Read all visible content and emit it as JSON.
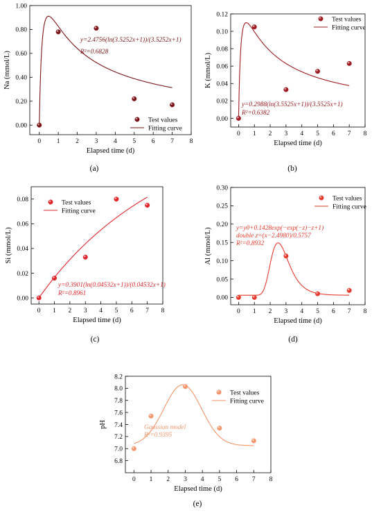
{
  "chart_data": [
    {
      "id": "a",
      "type": "scatter",
      "panel_label": "(a)",
      "title": "",
      "xlabel": "Elapsed time (d)",
      "ylabel": "Na (mmol/L)",
      "xlim": [
        -0.5,
        8
      ],
      "ylim": [
        -0.08,
        1.0
      ],
      "xticks": [
        0,
        1,
        2,
        3,
        4,
        5,
        6,
        7,
        8
      ],
      "yticks": [
        0.0,
        0.2,
        0.4,
        0.6,
        0.8,
        1.0
      ],
      "ytick_labels": [
        "0.00",
        "0.20",
        "0.40",
        "0.60",
        "0.80",
        "1.00"
      ],
      "color": "#7b1416",
      "series": [
        {
          "name": "Test values",
          "kind": "points",
          "x": [
            0,
            1,
            3,
            5,
            7
          ],
          "y": [
            0.0,
            0.78,
            0.81,
            0.22,
            0.17
          ]
        },
        {
          "name": "Fitting curve",
          "kind": "curve",
          "model": "log",
          "a": 2.4756,
          "b": 3.5252,
          "x_range": [
            0,
            7
          ]
        }
      ],
      "annotation_lines": [
        "y=2.4756(ln(3.5252x+1))/(3.5252x+1)",
        "R²=0.6828"
      ],
      "legend_position": "bottom-right"
    },
    {
      "id": "b",
      "type": "scatter",
      "panel_label": "(b)",
      "title": "",
      "xlabel": "Elapsed time (d)",
      "ylabel": "K (mmol/L)",
      "xlim": [
        -0.5,
        8
      ],
      "ylim": [
        -0.01,
        0.12
      ],
      "xticks": [
        0,
        1,
        2,
        3,
        4,
        5,
        6,
        7,
        8
      ],
      "yticks": [
        0.0,
        0.02,
        0.04,
        0.06,
        0.08,
        0.1,
        0.12
      ],
      "ytick_labels": [
        "0.00",
        "0.02",
        "0.04",
        "0.06",
        "0.08",
        "0.10",
        "0.12"
      ],
      "color": "#9e1b22",
      "series": [
        {
          "name": "Test values",
          "kind": "points",
          "x": [
            0,
            1,
            3,
            5,
            7
          ],
          "y": [
            0.0,
            0.105,
            0.033,
            0.054,
            0.063
          ]
        },
        {
          "name": "Fitting curve",
          "kind": "curve",
          "model": "log",
          "a": 0.2988,
          "b": 3.5525,
          "x_range": [
            0,
            7
          ]
        }
      ],
      "annotation_lines": [
        "y=0.2988(ln(3.5525x+1))/(3.5525x+1)",
        "R²=0.6382"
      ],
      "legend_position": "top-right"
    },
    {
      "id": "c",
      "type": "scatter",
      "panel_label": "(c)",
      "title": "",
      "xlabel": "Elapsed time (d)",
      "ylabel": "Si (mmol/L)",
      "xlim": [
        -0.5,
        8
      ],
      "ylim": [
        -0.005,
        0.09
      ],
      "xticks": [
        0,
        1,
        2,
        3,
        4,
        5,
        6,
        7,
        8
      ],
      "yticks": [
        0.0,
        0.02,
        0.04,
        0.06,
        0.08
      ],
      "ytick_labels": [
        "0.00",
        "0.02",
        "0.04",
        "0.06",
        "0.08"
      ],
      "color": "#e0262b",
      "series": [
        {
          "name": "Test values",
          "kind": "points",
          "x": [
            0,
            1,
            3,
            5,
            7
          ],
          "y": [
            0.0,
            0.016,
            0.033,
            0.08,
            0.075
          ]
        },
        {
          "name": "Fitting curve",
          "kind": "curve",
          "model": "log",
          "a": 0.3901,
          "b": 0.04532,
          "x_range": [
            0,
            7
          ]
        }
      ],
      "annotation_lines": [
        "y=0.3901(ln(0.04532x+1))/(0.04532x+1)",
        "R²=0.8961"
      ],
      "legend_position": "top-left"
    },
    {
      "id": "d",
      "type": "scatter",
      "panel_label": "(d)",
      "title": "",
      "xlabel": "Elapsed time (d)",
      "ylabel": "Al (mmol/L)",
      "xlim": [
        -0.5,
        8
      ],
      "ylim": [
        -0.02,
        0.3
      ],
      "xticks": [
        0,
        1,
        2,
        3,
        4,
        5,
        6,
        7,
        8
      ],
      "yticks": [
        0.0,
        0.05,
        0.1,
        0.15,
        0.2,
        0.25,
        0.3
      ],
      "ytick_labels": [
        "0.00",
        "0.05",
        "0.10",
        "0.15",
        "0.20",
        "0.25",
        "0.30"
      ],
      "color": "#e63a2c",
      "series": [
        {
          "name": "Test values",
          "kind": "points",
          "x": [
            0,
            1,
            3,
            5,
            7
          ],
          "y": [
            0.0,
            0.0,
            0.113,
            0.01,
            0.019
          ]
        },
        {
          "name": "Fitting curve",
          "kind": "curve",
          "model": "gumbel",
          "y0": 0.006,
          "A": 0.1428,
          "xc": 2.498,
          "w": 0.5757,
          "x_range": [
            0,
            7
          ]
        }
      ],
      "annotation_lines": [
        "y=y0+0.1428exp(−exp(−z)−z+1)",
        "double z=(x−2.4980)/0.5757",
        "R²=0.8932"
      ],
      "legend_position": "top-right"
    },
    {
      "id": "e",
      "type": "scatter",
      "panel_label": "(e)",
      "title": "",
      "xlabel": "Elapsed time (d)",
      "ylabel": "pH",
      "xlim": [
        -0.5,
        8
      ],
      "ylim": [
        6.6,
        8.2
      ],
      "xticks": [
        0,
        1,
        2,
        3,
        4,
        5,
        6,
        7,
        8
      ],
      "yticks": [
        6.8,
        7.0,
        7.2,
        7.4,
        7.6,
        7.8,
        8.0,
        8.2
      ],
      "ytick_labels": [
        "6.8",
        "7.0",
        "7.2",
        "7.4",
        "7.6",
        "7.8",
        "8.0",
        "8.2"
      ],
      "color": "#f4966a",
      "series": [
        {
          "name": "Test values",
          "kind": "points",
          "x": [
            0,
            1,
            3,
            5,
            7
          ],
          "y": [
            7.0,
            7.54,
            8.03,
            7.34,
            7.13
          ]
        },
        {
          "name": "Fitting curve",
          "kind": "curve",
          "model": "gauss",
          "y0": 7.05,
          "A": 1.01,
          "xc": 2.85,
          "sigma": 1.1,
          "x_range": [
            0,
            7
          ]
        }
      ],
      "annotation_lines": [
        "Gaussian model",
        "R²=0.9395"
      ],
      "legend_position": "top-right"
    }
  ]
}
